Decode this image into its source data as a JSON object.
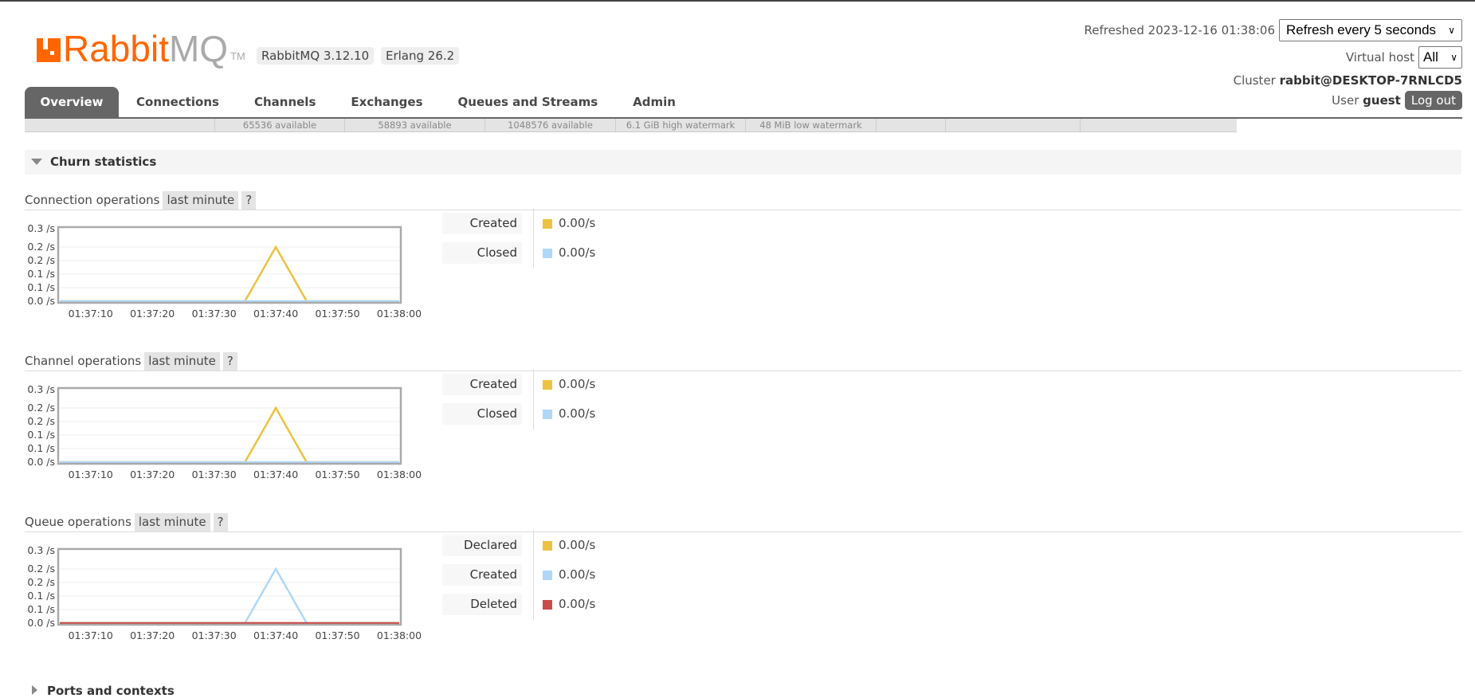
{
  "header": {
    "logo_text": "RabbitMQ",
    "logo_tm": "TM",
    "version_badge": "RabbitMQ 3.12.10",
    "erlang_badge": "Erlang 26.2",
    "refreshed_label": "Refreshed 2023-12-16 01:38:06",
    "refresh_select": "Refresh every 5 seconds",
    "vhost_label": "Virtual host",
    "vhost_select": "All",
    "cluster_label": "Cluster",
    "cluster_name": "rabbit@DESKTOP-7RNLCD5",
    "user_label": "User",
    "user_name": "guest",
    "logout": "Log out"
  },
  "tabs": [
    {
      "label": "Overview",
      "active": true
    },
    {
      "label": "Connections"
    },
    {
      "label": "Channels"
    },
    {
      "label": "Exchanges"
    },
    {
      "label": "Queues and Streams"
    },
    {
      "label": "Admin"
    }
  ],
  "stats_bar": [
    "",
    "65536 available",
    "58893 available",
    "1048576 available",
    "6.1 GiB high watermark",
    "48 MiB low watermark",
    "",
    "",
    ""
  ],
  "churn": {
    "title": "Churn statistics"
  },
  "ports": {
    "title": "Ports and contexts"
  },
  "colors": {
    "yellow": "#edc240",
    "blue": "#afd8f8",
    "red": "#cb4b4b",
    "accent": "#ff6600"
  },
  "chart_data": [
    {
      "type": "line",
      "title": "Connection operations",
      "range": "last minute",
      "help": "?",
      "y_ticks": [
        "0.3 /s",
        "0.2 /s",
        "0.2 /s",
        "0.1 /s",
        "0.1 /s",
        "0.0 /s"
      ],
      "ylim": [
        0,
        0.25
      ],
      "x_ticks": [
        "01:37:10",
        "01:37:20",
        "01:37:30",
        "01:37:40",
        "01:37:50",
        "01:38:00"
      ],
      "x": [
        "01:37:05",
        "01:37:10",
        "01:37:15",
        "01:37:20",
        "01:37:25",
        "01:37:30",
        "01:37:35",
        "01:37:40",
        "01:37:45",
        "01:37:50",
        "01:37:55",
        "01:38:00"
      ],
      "series": [
        {
          "name": "Created",
          "rate": "0.00/s",
          "color": "#edc240",
          "values": [
            0,
            0,
            0,
            0,
            0,
            0,
            0,
            0.2,
            0,
            0,
            0,
            0
          ]
        },
        {
          "name": "Closed",
          "rate": "0.00/s",
          "color": "#afd8f8",
          "values": [
            0,
            0,
            0,
            0,
            0,
            0,
            0,
            0,
            0,
            0,
            0,
            0
          ]
        }
      ]
    },
    {
      "type": "line",
      "title": "Channel operations",
      "range": "last minute",
      "help": "?",
      "y_ticks": [
        "0.3 /s",
        "0.2 /s",
        "0.2 /s",
        "0.1 /s",
        "0.1 /s",
        "0.0 /s"
      ],
      "ylim": [
        0,
        0.25
      ],
      "x_ticks": [
        "01:37:10",
        "01:37:20",
        "01:37:30",
        "01:37:40",
        "01:37:50",
        "01:38:00"
      ],
      "x": [
        "01:37:05",
        "01:37:10",
        "01:37:15",
        "01:37:20",
        "01:37:25",
        "01:37:30",
        "01:37:35",
        "01:37:40",
        "01:37:45",
        "01:37:50",
        "01:37:55",
        "01:38:00"
      ],
      "series": [
        {
          "name": "Created",
          "rate": "0.00/s",
          "color": "#edc240",
          "values": [
            0,
            0,
            0,
            0,
            0,
            0,
            0,
            0.2,
            0,
            0,
            0,
            0
          ]
        },
        {
          "name": "Closed",
          "rate": "0.00/s",
          "color": "#afd8f8",
          "values": [
            0,
            0,
            0,
            0,
            0,
            0,
            0,
            0,
            0,
            0,
            0,
            0
          ]
        }
      ]
    },
    {
      "type": "line",
      "title": "Queue operations",
      "range": "last minute",
      "help": "?",
      "y_ticks": [
        "0.3 /s",
        "0.2 /s",
        "0.2 /s",
        "0.1 /s",
        "0.1 /s",
        "0.0 /s"
      ],
      "ylim": [
        0,
        0.25
      ],
      "x_ticks": [
        "01:37:10",
        "01:37:20",
        "01:37:30",
        "01:37:40",
        "01:37:50",
        "01:38:00"
      ],
      "x": [
        "01:37:05",
        "01:37:10",
        "01:37:15",
        "01:37:20",
        "01:37:25",
        "01:37:30",
        "01:37:35",
        "01:37:40",
        "01:37:45",
        "01:37:50",
        "01:37:55",
        "01:38:00"
      ],
      "series": [
        {
          "name": "Declared",
          "rate": "0.00/s",
          "color": "#edc240",
          "values": [
            0,
            0,
            0,
            0,
            0,
            0,
            0,
            0,
            0,
            0,
            0,
            0
          ]
        },
        {
          "name": "Created",
          "rate": "0.00/s",
          "color": "#afd8f8",
          "values": [
            0,
            0,
            0,
            0,
            0,
            0,
            0,
            0.2,
            0,
            0,
            0,
            0
          ]
        },
        {
          "name": "Deleted",
          "rate": "0.00/s",
          "color": "#cb4b4b",
          "values": [
            0,
            0,
            0,
            0,
            0,
            0,
            0,
            0,
            0,
            0,
            0,
            0
          ]
        }
      ]
    }
  ]
}
